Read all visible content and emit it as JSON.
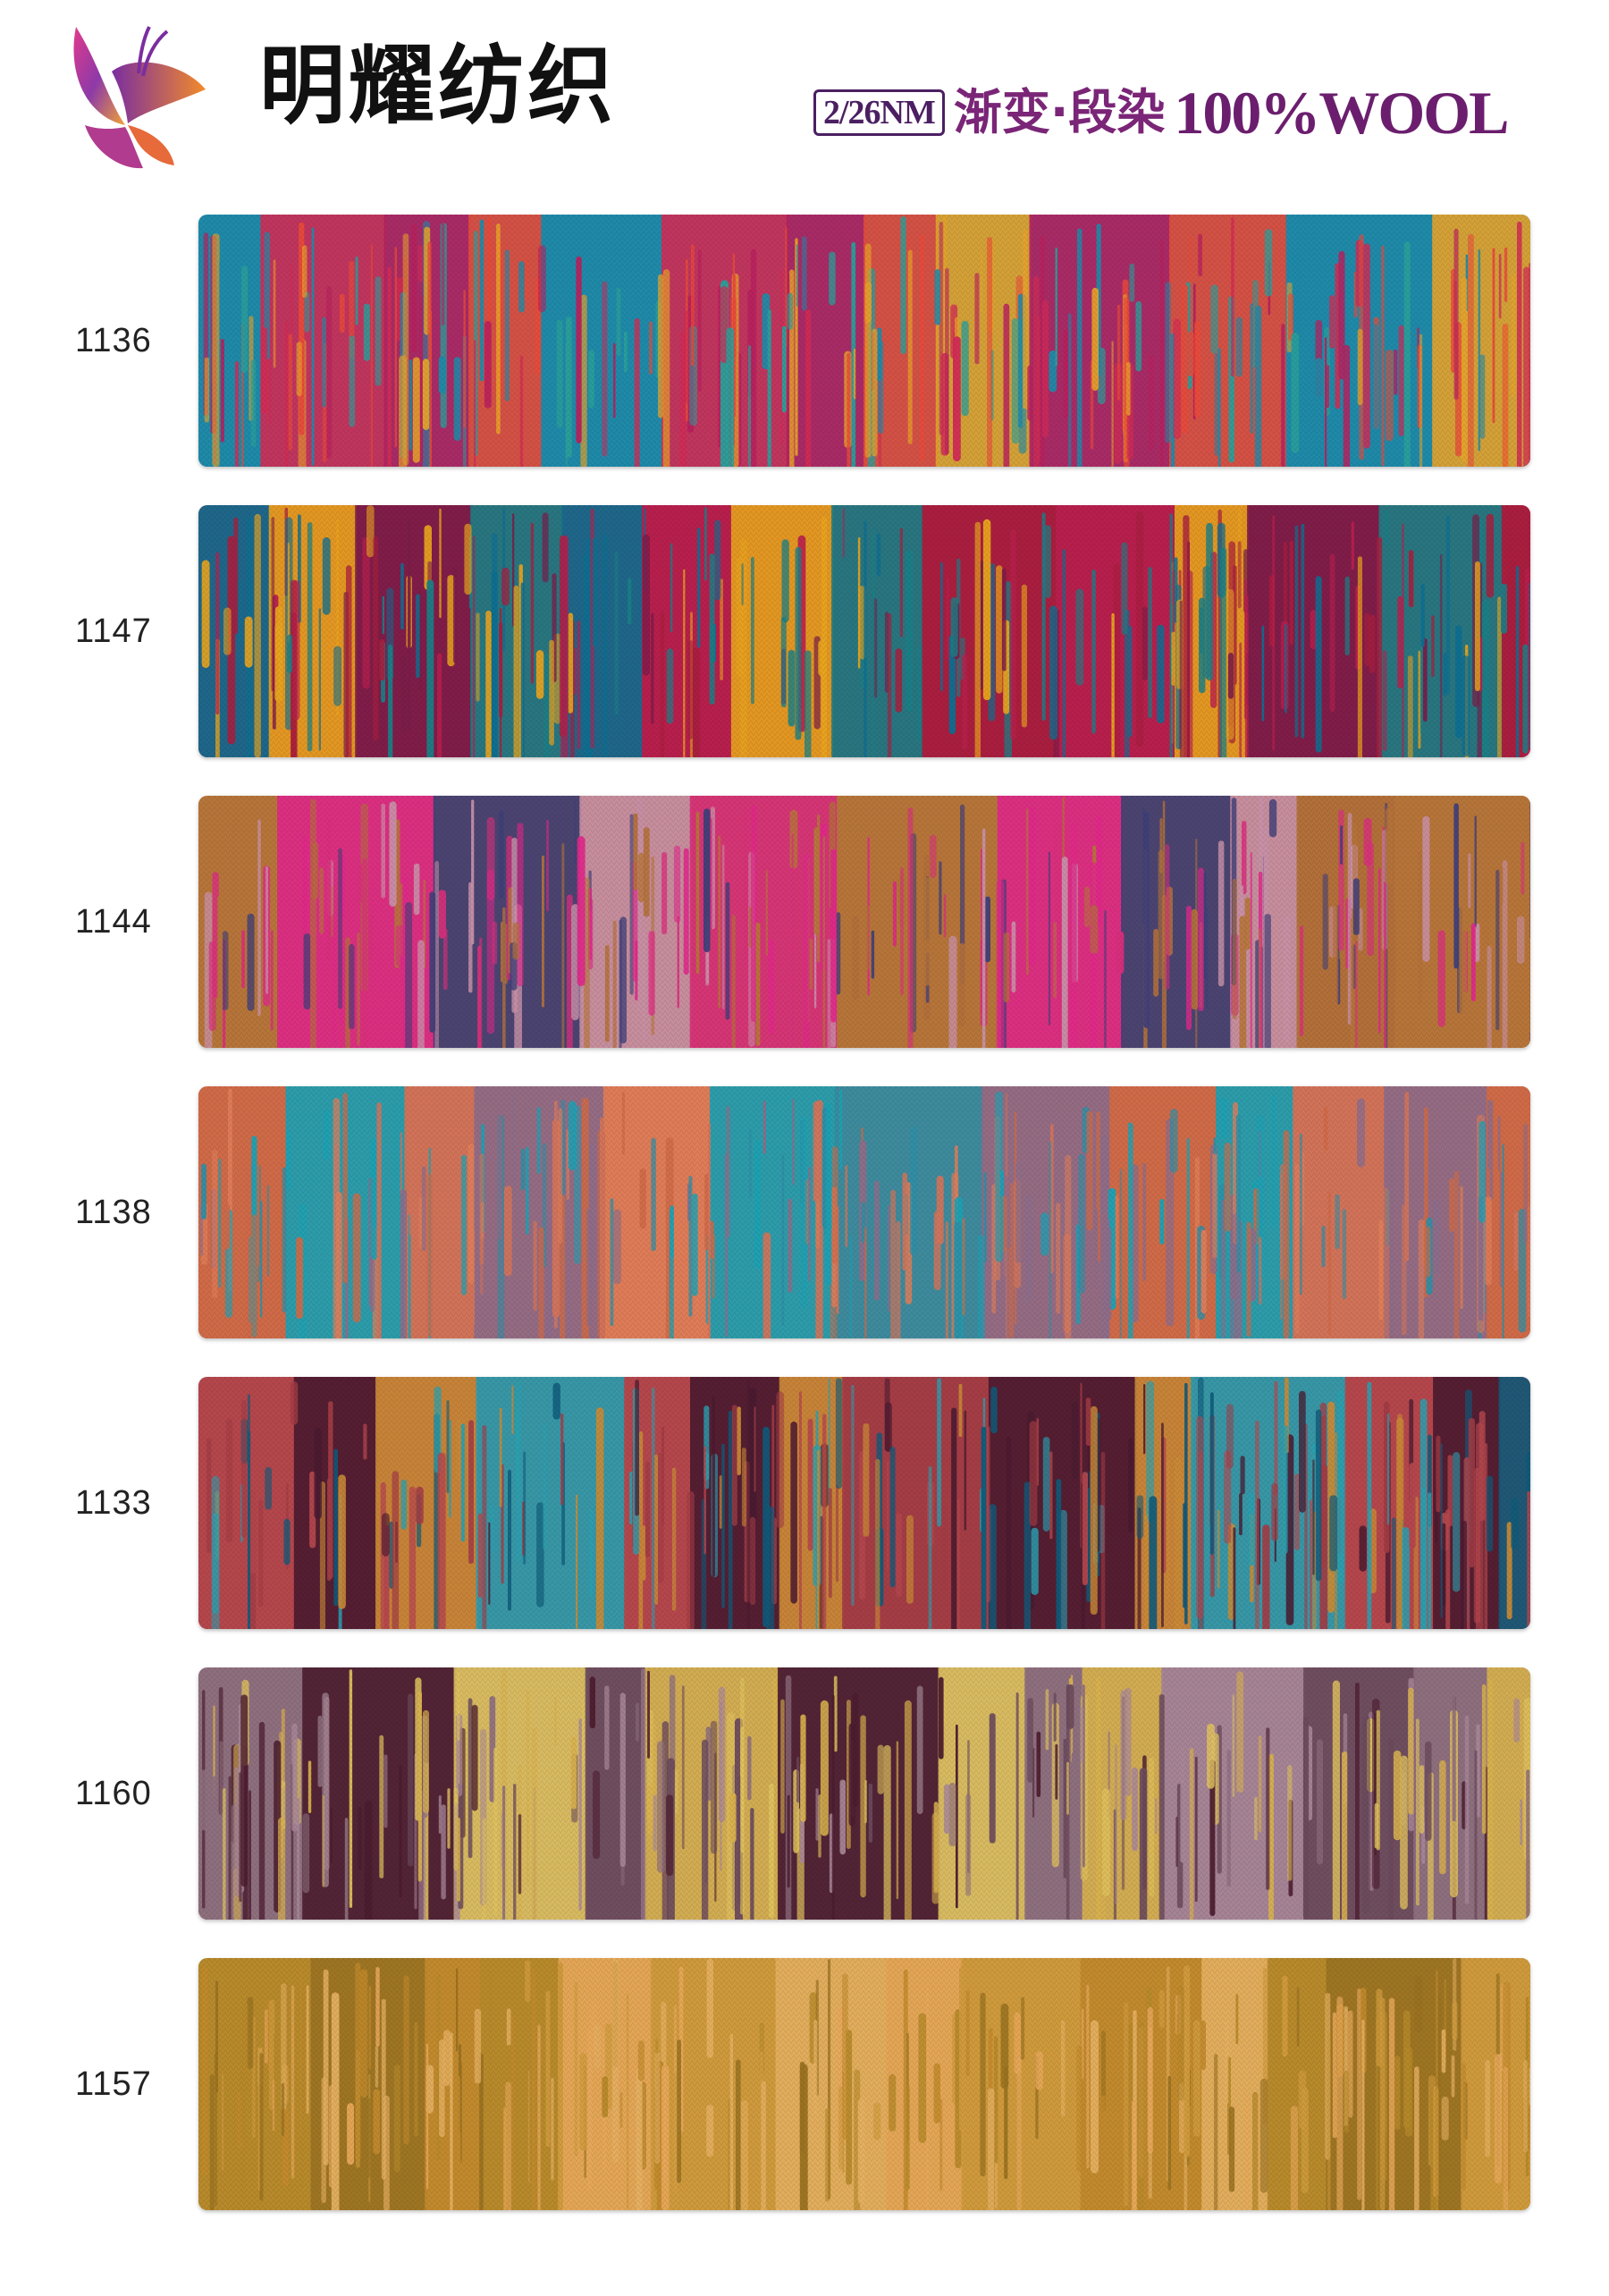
{
  "header": {
    "brand_name": "明耀纺织",
    "yarn_count": "2/26NM",
    "product_type": "渐变·段染",
    "material": "100%WOOL",
    "logo_icon": "butterfly-logo-icon"
  },
  "swatches": [
    {
      "code": "1136",
      "colors": [
        "#1f8aa8",
        "#e8a32a",
        "#d12b55",
        "#b8205e",
        "#2a9f9a",
        "#e84a3a"
      ],
      "base": "#1f8aa8"
    },
    {
      "code": "1147",
      "colors": [
        "#0e6f91",
        "#b81f4e",
        "#e8a41e",
        "#7a1d49",
        "#1a7f86",
        "#a81e3e"
      ],
      "base": "#b81f4e"
    },
    {
      "code": "1144",
      "colors": [
        "#b7753a",
        "#e0288a",
        "#3f3f78",
        "#c991a9",
        "#b3703a",
        "#d92f7c"
      ],
      "base": "#b7753a"
    },
    {
      "code": "1138",
      "colors": [
        "#cf6a48",
        "#1ba2b5",
        "#d2745b",
        "#2e8fa6",
        "#8e6d8a",
        "#e07e5a"
      ],
      "base": "#cf6a48"
    },
    {
      "code": "1133",
      "colors": [
        "#b5474d",
        "#4a1a30",
        "#0f5a7a",
        "#c98a36",
        "#2aa0b0",
        "#a33c45"
      ],
      "base": "#b5474d"
    },
    {
      "code": "1160",
      "colors": [
        "#8e6f7e",
        "#d9b24e",
        "#4b1c2e",
        "#a88698",
        "#e0c25e",
        "#6b4a5c"
      ],
      "base": "#8e6f7e"
    },
    {
      "code": "1157",
      "colors": [
        "#b7892a",
        "#e8a85a",
        "#9a7221",
        "#d09b3d",
        "#c28a2c",
        "#e5b061"
      ],
      "base": "#c28f32"
    }
  ]
}
